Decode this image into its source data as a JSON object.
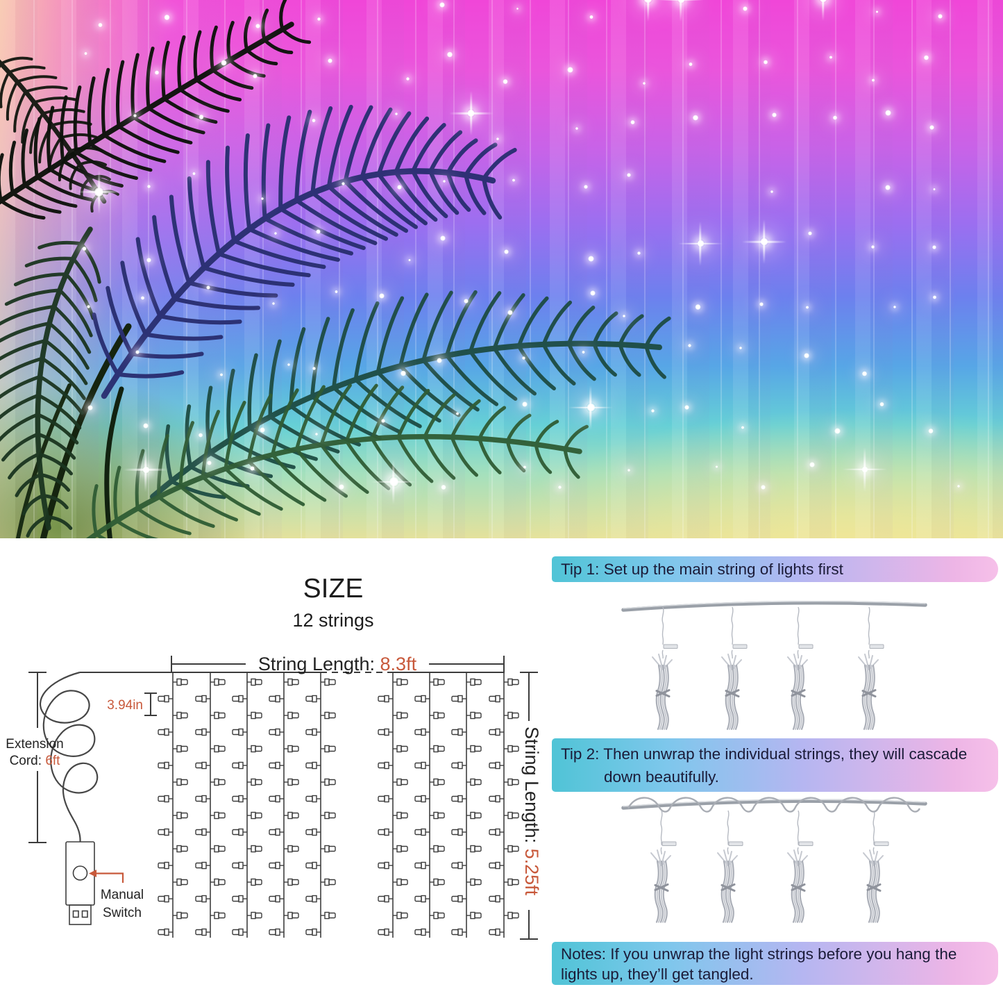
{
  "photo": {
    "palette": {
      "top_magenta": "#f046d8",
      "upper_purple": "#9a6ff0",
      "mid_blue": "#6d80ee",
      "lower_cyan": "#66d0d6",
      "bottom_yellow": "#e4e19c",
      "left_curtain_peach": "#f5cfb4",
      "palm_navy": "#2a2f72",
      "palm_green": "#2f5c34"
    }
  },
  "size_diagram": {
    "title": "SIZE",
    "subtitle": "12 strings",
    "accent_color": "#c8593b",
    "string_length_label": "String Length: ",
    "string_length_value": "8.3ft",
    "bulb_spacing_value": "3.94in",
    "extension_label_line1": "Extension",
    "extension_label_line2": "Cord: ",
    "extension_value": "6ft",
    "drop_length_label": "String Length: ",
    "drop_length_value": "5.25ft",
    "switch_label_line1": "Manual",
    "switch_label_line2": "Switch"
  },
  "tips": {
    "tip1_text": "Tip 1: Set up the main string of lights first",
    "tip2_line1": "Tip 2: Then unwrap the individual strings, they will cascade",
    "tip2_line2": "down beautifully.",
    "notes_line1": "Notes: If you unwrap the light strings before you hang the",
    "notes_line2": "lights up, they’ll get tangled."
  }
}
